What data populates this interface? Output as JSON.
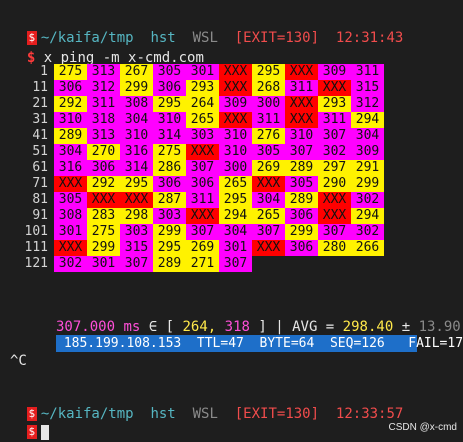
{
  "prompt1": {
    "path": "~/kaifa/tmp",
    "host": "hst",
    "env": "WSL",
    "exit": "[EXIT=130]",
    "time": "12:31:43",
    "badge": "$"
  },
  "command": {
    "sym": "$",
    "text": "x ping -m x-cmd.com"
  },
  "grid": {
    "rows": [
      {
        "label": "1",
        "cells": [
          [
            "275",
            "y"
          ],
          [
            "313",
            "m"
          ],
          [
            "267",
            "y"
          ],
          [
            "305",
            "m"
          ],
          [
            "301",
            "m"
          ],
          [
            "XXX",
            "r"
          ],
          [
            "295",
            "y"
          ],
          [
            "XXX",
            "r"
          ],
          [
            "309",
            "m"
          ],
          [
            "311",
            "m"
          ]
        ]
      },
      {
        "label": "11",
        "cells": [
          [
            "306",
            "m"
          ],
          [
            "312",
            "m"
          ],
          [
            "299",
            "y"
          ],
          [
            "306",
            "m"
          ],
          [
            "293",
            "y"
          ],
          [
            "XXX",
            "r"
          ],
          [
            "268",
            "y"
          ],
          [
            "311",
            "m"
          ],
          [
            "XXX",
            "r"
          ],
          [
            "315",
            "m"
          ]
        ]
      },
      {
        "label": "21",
        "cells": [
          [
            "292",
            "y"
          ],
          [
            "311",
            "m"
          ],
          [
            "308",
            "m"
          ],
          [
            "295",
            "y"
          ],
          [
            "264",
            "y"
          ],
          [
            "309",
            "m"
          ],
          [
            "300",
            "m"
          ],
          [
            "XXX",
            "r"
          ],
          [
            "293",
            "y"
          ],
          [
            "312",
            "m"
          ]
        ]
      },
      {
        "label": "31",
        "cells": [
          [
            "310",
            "m"
          ],
          [
            "318",
            "m"
          ],
          [
            "304",
            "m"
          ],
          [
            "310",
            "m"
          ],
          [
            "265",
            "y"
          ],
          [
            "XXX",
            "r"
          ],
          [
            "311",
            "m"
          ],
          [
            "XXX",
            "r"
          ],
          [
            "311",
            "m"
          ],
          [
            "294",
            "y"
          ]
        ]
      },
      {
        "label": "41",
        "cells": [
          [
            "289",
            "y"
          ],
          [
            "313",
            "m"
          ],
          [
            "310",
            "m"
          ],
          [
            "314",
            "m"
          ],
          [
            "303",
            "m"
          ],
          [
            "310",
            "m"
          ],
          [
            "276",
            "y"
          ],
          [
            "310",
            "m"
          ],
          [
            "307",
            "m"
          ],
          [
            "304",
            "m"
          ]
        ]
      },
      {
        "label": "51",
        "cells": [
          [
            "304",
            "m"
          ],
          [
            "270",
            "y"
          ],
          [
            "316",
            "m"
          ],
          [
            "275",
            "y"
          ],
          [
            "XXX",
            "r"
          ],
          [
            "310",
            "m"
          ],
          [
            "305",
            "m"
          ],
          [
            "307",
            "m"
          ],
          [
            "302",
            "m"
          ],
          [
            "309",
            "m"
          ]
        ]
      },
      {
        "label": "61",
        "cells": [
          [
            "316",
            "m"
          ],
          [
            "306",
            "m"
          ],
          [
            "314",
            "m"
          ],
          [
            "286",
            "y"
          ],
          [
            "307",
            "m"
          ],
          [
            "300",
            "m"
          ],
          [
            "269",
            "y"
          ],
          [
            "289",
            "y"
          ],
          [
            "297",
            "y"
          ],
          [
            "291",
            "y"
          ]
        ]
      },
      {
        "label": "71",
        "cells": [
          [
            "XXX",
            "r"
          ],
          [
            "292",
            "y"
          ],
          [
            "295",
            "y"
          ],
          [
            "306",
            "m"
          ],
          [
            "306",
            "m"
          ],
          [
            "265",
            "y"
          ],
          [
            "XXX",
            "r"
          ],
          [
            "305",
            "m"
          ],
          [
            "290",
            "y"
          ],
          [
            "299",
            "y"
          ]
        ]
      },
      {
        "label": "81",
        "cells": [
          [
            "305",
            "m"
          ],
          [
            "XXX",
            "r"
          ],
          [
            "XXX",
            "r"
          ],
          [
            "287",
            "y"
          ],
          [
            "311",
            "m"
          ],
          [
            "295",
            "y"
          ],
          [
            "304",
            "m"
          ],
          [
            "289",
            "y"
          ],
          [
            "XXX",
            "r"
          ],
          [
            "302",
            "m"
          ]
        ]
      },
      {
        "label": "91",
        "cells": [
          [
            "308",
            "m"
          ],
          [
            "283",
            "y"
          ],
          [
            "298",
            "y"
          ],
          [
            "303",
            "m"
          ],
          [
            "XXX",
            "r"
          ],
          [
            "294",
            "y"
          ],
          [
            "265",
            "y"
          ],
          [
            "306",
            "m"
          ],
          [
            "XXX",
            "r"
          ],
          [
            "294",
            "y"
          ]
        ]
      },
      {
        "label": "101",
        "cells": [
          [
            "301",
            "m"
          ],
          [
            "275",
            "y"
          ],
          [
            "303",
            "m"
          ],
          [
            "299",
            "y"
          ],
          [
            "307",
            "m"
          ],
          [
            "304",
            "m"
          ],
          [
            "307",
            "m"
          ],
          [
            "299",
            "y"
          ],
          [
            "307",
            "m"
          ],
          [
            "302",
            "m"
          ]
        ]
      },
      {
        "label": "111",
        "cells": [
          [
            "XXX",
            "r"
          ],
          [
            "299",
            "y"
          ],
          [
            "315",
            "m"
          ],
          [
            "295",
            "y"
          ],
          [
            "269",
            "y"
          ],
          [
            "301",
            "m"
          ],
          [
            "XXX",
            "r"
          ],
          [
            "306",
            "m"
          ],
          [
            "280",
            "y"
          ],
          [
            "266",
            "y"
          ]
        ]
      },
      {
        "label": "121",
        "cells": [
          [
            "302",
            "m"
          ],
          [
            "301",
            "m"
          ],
          [
            "307",
            "m"
          ],
          [
            "289",
            "y"
          ],
          [
            "271",
            "y"
          ],
          [
            "307",
            "m"
          ]
        ]
      }
    ]
  },
  "stats": {
    "current": "307.000",
    "unit": "ms",
    "in": "∈ [",
    "min": "264,",
    "max": "318",
    "close": "] | AVG =",
    "avg": "298.40",
    "pm": "±",
    "std": "13.90"
  },
  "status": {
    "ip": "185.199.108.153",
    "ttl": "TTL=47",
    "byte": "BYTE=64",
    "seq": "SEQ=126",
    "fail": "FAIL=17"
  },
  "interrupt": "^C",
  "prompt2": {
    "path": "~/kaifa/tmp",
    "host": "hst",
    "env": "WSL",
    "exit": "[EXIT=130]",
    "time": "12:33:57",
    "badge": "$"
  },
  "watermark": "CSDN @x-cmd",
  "colors": {
    "yellow": "#fff200",
    "magenta": "#ff00ff",
    "red": "#ff0000",
    "statusbar": "#1e6fc9"
  }
}
